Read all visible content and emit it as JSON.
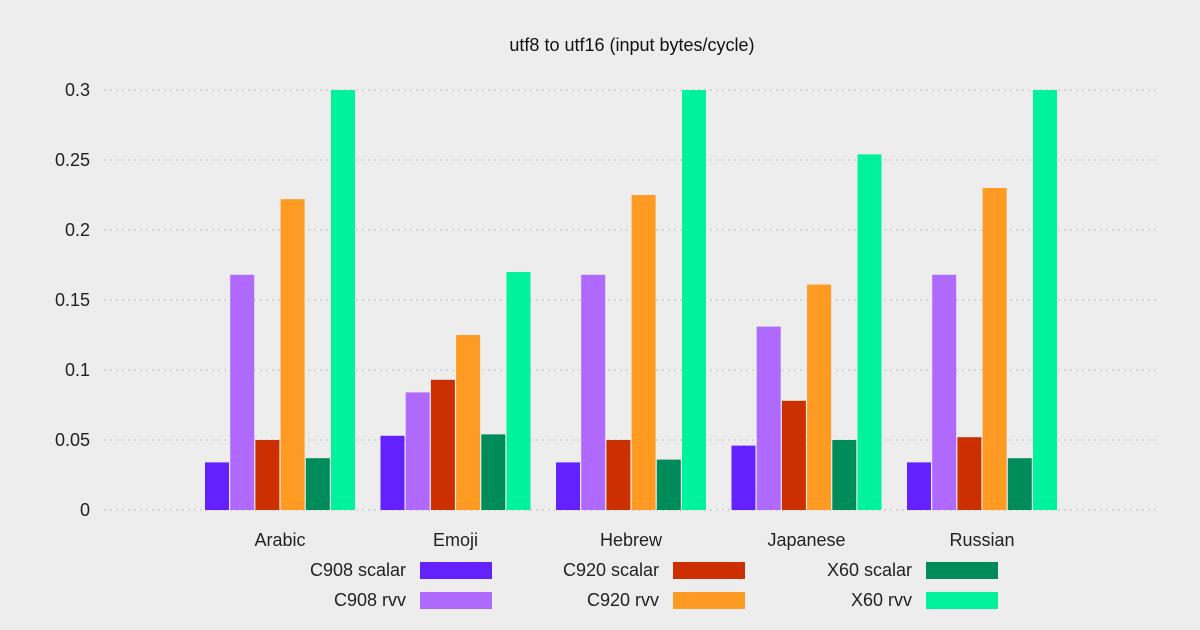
{
  "chart_data": {
    "type": "bar",
    "title": "utf8 to utf16 (input bytes/cycle)",
    "xlabel": "",
    "ylabel": "",
    "ylim": [
      0,
      0.3
    ],
    "yticks": [
      "0",
      "0.05",
      "0.1",
      "0.15",
      "0.2",
      "0.25",
      "0.3"
    ],
    "grid": true,
    "legend_position": "bottom",
    "categories": [
      "Arabic",
      "Emoji",
      "Hebrew",
      "Japanese",
      "Russian"
    ],
    "series": [
      {
        "name": "C908 scalar",
        "color": "#6322fd",
        "values": [
          0.034,
          0.053,
          0.034,
          0.046,
          0.034
        ]
      },
      {
        "name": "C908 rvv",
        "color": "#b069fd",
        "values": [
          0.168,
          0.084,
          0.168,
          0.131,
          0.168
        ]
      },
      {
        "name": "C920 scalar",
        "color": "#cc3000",
        "values": [
          0.05,
          0.093,
          0.05,
          0.078,
          0.052
        ]
      },
      {
        "name": "C920 rvv",
        "color": "#ff9a22",
        "values": [
          0.222,
          0.125,
          0.225,
          0.161,
          0.23
        ]
      },
      {
        "name": "X60 scalar",
        "color": "#008c5a",
        "values": [
          0.037,
          0.054,
          0.036,
          0.05,
          0.037
        ]
      },
      {
        "name": "X60 rvv",
        "color": "#00f29c",
        "values": [
          0.3,
          0.17,
          0.3,
          0.254,
          0.3
        ]
      }
    ]
  }
}
